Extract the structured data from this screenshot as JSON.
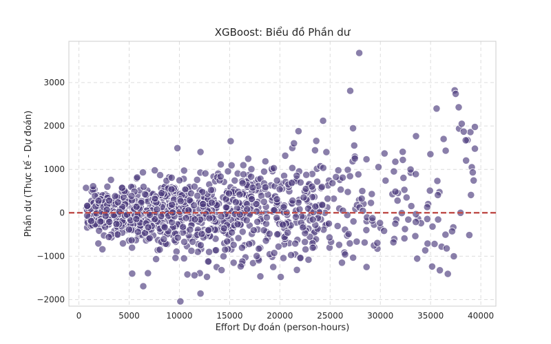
{
  "chart_data": {
    "type": "scatter",
    "title": "XGBoost: Biểu đồ Phần dư",
    "xlabel": "Effort Dự đoán (person-hours)",
    "ylabel": "Phần dư (Thực tế - Dự đoán)",
    "xlim": [
      -1000,
      41500
    ],
    "ylim": [
      -2150,
      3950
    ],
    "x_ticks": [
      0,
      5000,
      10000,
      15000,
      20000,
      25000,
      30000,
      35000,
      40000
    ],
    "y_ticks": [
      -2000,
      -1000,
      0,
      1000,
      2000,
      3000
    ],
    "x_tick_labels": [
      "0",
      "5000",
      "10000",
      "15000",
      "20000",
      "25000",
      "30000",
      "35000",
      "40000"
    ],
    "y_tick_labels": [
      "−2000",
      "−1000",
      "0",
      "1000",
      "2000",
      "3000"
    ],
    "grid": true,
    "reference_line": {
      "y": 0,
      "style": "dashed",
      "color": "#c0504d"
    },
    "point_color": "#4b3a7d",
    "point_count": 1050,
    "notable_points": [
      {
        "x": 27900,
        "y": 3680
      },
      {
        "x": 27000,
        "y": 2810
      },
      {
        "x": 37400,
        "y": 2820
      },
      {
        "x": 37500,
        "y": 2740
      },
      {
        "x": 37800,
        "y": 2430
      },
      {
        "x": 24300,
        "y": 2120
      },
      {
        "x": 35600,
        "y": 2400
      },
      {
        "x": 38100,
        "y": 2050
      },
      {
        "x": 38300,
        "y": 1870
      },
      {
        "x": 38500,
        "y": 1670
      },
      {
        "x": 36300,
        "y": 1700
      },
      {
        "x": 36500,
        "y": 1430
      },
      {
        "x": 39100,
        "y": 1050
      },
      {
        "x": 39200,
        "y": 930
      },
      {
        "x": 15100,
        "y": 1650
      },
      {
        "x": 21400,
        "y": 1600
      },
      {
        "x": 9800,
        "y": 1490
      },
      {
        "x": 12100,
        "y": 1400
      },
      {
        "x": 23500,
        "y": 1440
      },
      {
        "x": 27400,
        "y": 1550
      },
      {
        "x": 10100,
        "y": -2040
      },
      {
        "x": 12100,
        "y": -1860
      },
      {
        "x": 6400,
        "y": -1690
      },
      {
        "x": 5300,
        "y": -1400
      },
      {
        "x": 10800,
        "y": -1420
      },
      {
        "x": 11500,
        "y": -1440
      },
      {
        "x": 14200,
        "y": -1320
      },
      {
        "x": 15400,
        "y": -1150
      },
      {
        "x": 36100,
        "y": -780
      },
      {
        "x": 36600,
        "y": -820
      },
      {
        "x": 31300,
        "y": -680
      },
      {
        "x": 32400,
        "y": -590
      }
    ]
  }
}
